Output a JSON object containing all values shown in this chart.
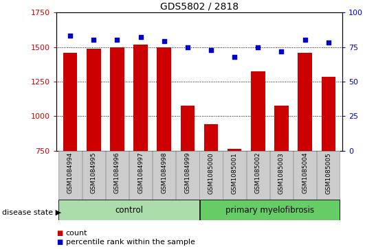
{
  "title": "GDS5802 / 2818",
  "samples": [
    "GSM1084994",
    "GSM1084995",
    "GSM1084996",
    "GSM1084997",
    "GSM1084998",
    "GSM1084999",
    "GSM1085000",
    "GSM1085001",
    "GSM1085002",
    "GSM1085003",
    "GSM1085004",
    "GSM1085005"
  ],
  "counts": [
    1460,
    1490,
    1500,
    1515,
    1500,
    1075,
    940,
    762,
    1325,
    1075,
    1460,
    1285
  ],
  "percentiles": [
    83,
    80,
    80,
    82,
    79,
    75,
    73,
    68,
    75,
    72,
    80,
    78
  ],
  "ylim_left": [
    750,
    1750
  ],
  "ylim_right": [
    0,
    100
  ],
  "yticks_left": [
    750,
    1000,
    1250,
    1500,
    1750
  ],
  "yticks_right": [
    0,
    25,
    50,
    75,
    100
  ],
  "bar_color": "#cc0000",
  "dot_color": "#0000cc",
  "control_count": 6,
  "control_label": "control",
  "disease_label": "primary myelofibrosis",
  "group_label": "disease state",
  "legend_count": "count",
  "legend_pct": "percentile rank within the sample",
  "control_bg": "#aaddaa",
  "disease_bg": "#66cc66",
  "xlabel_bg": "#cccccc"
}
